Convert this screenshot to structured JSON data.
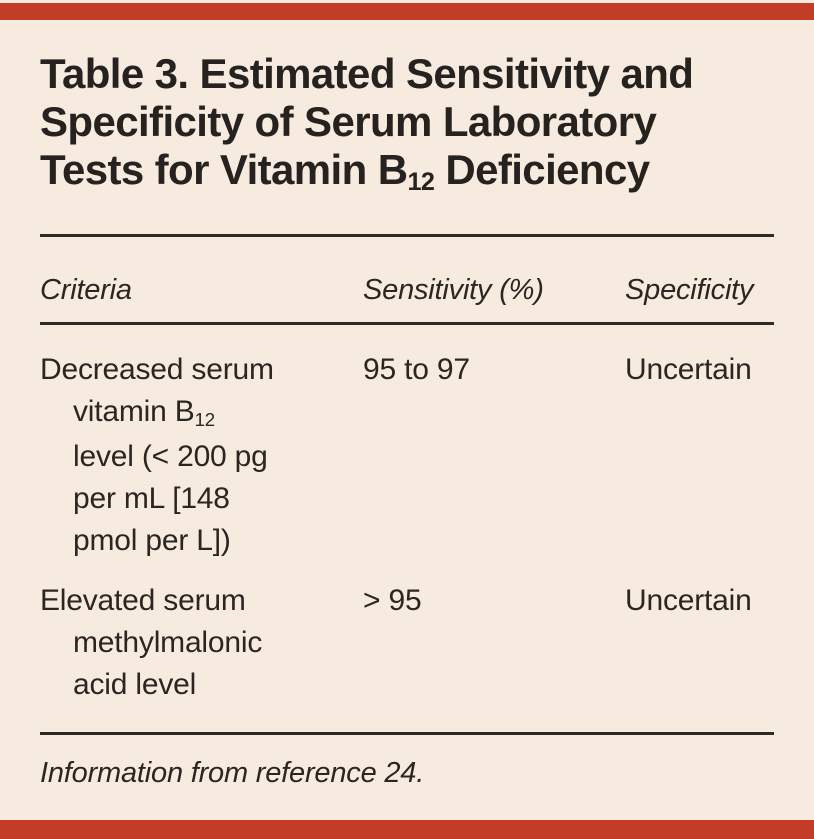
{
  "page": {
    "background_color": "#F7EBDF",
    "accent_red": "#C23C28",
    "text_color": "#2B2622"
  },
  "title": {
    "line1": "Table 3. Estimated Sensitivity and",
    "line2": "Specificity of Serum Laboratory",
    "line3_pre": "Tests for Vitamin B",
    "line3_sub": "12",
    "line3_post": " Deficiency"
  },
  "columns": [
    "Criteria",
    "Sensitivity (%)",
    "Specificity"
  ],
  "rows": [
    {
      "criteria_line1": "Decreased serum",
      "criteria_line2_pre": "vitamin B",
      "criteria_line2_sub": "12",
      "criteria_line3": "level (< 200 pg",
      "criteria_line4": "per mL [148",
      "criteria_line5": "pmol per L])",
      "sensitivity": "95 to 97",
      "specificity": "Uncertain"
    },
    {
      "criteria_line1": "Elevated serum",
      "criteria_line2": "methylmalonic",
      "criteria_line3": "acid level",
      "sensitivity": "> 95",
      "specificity": "Uncertain"
    }
  ],
  "footnote": "Information from reference 24."
}
